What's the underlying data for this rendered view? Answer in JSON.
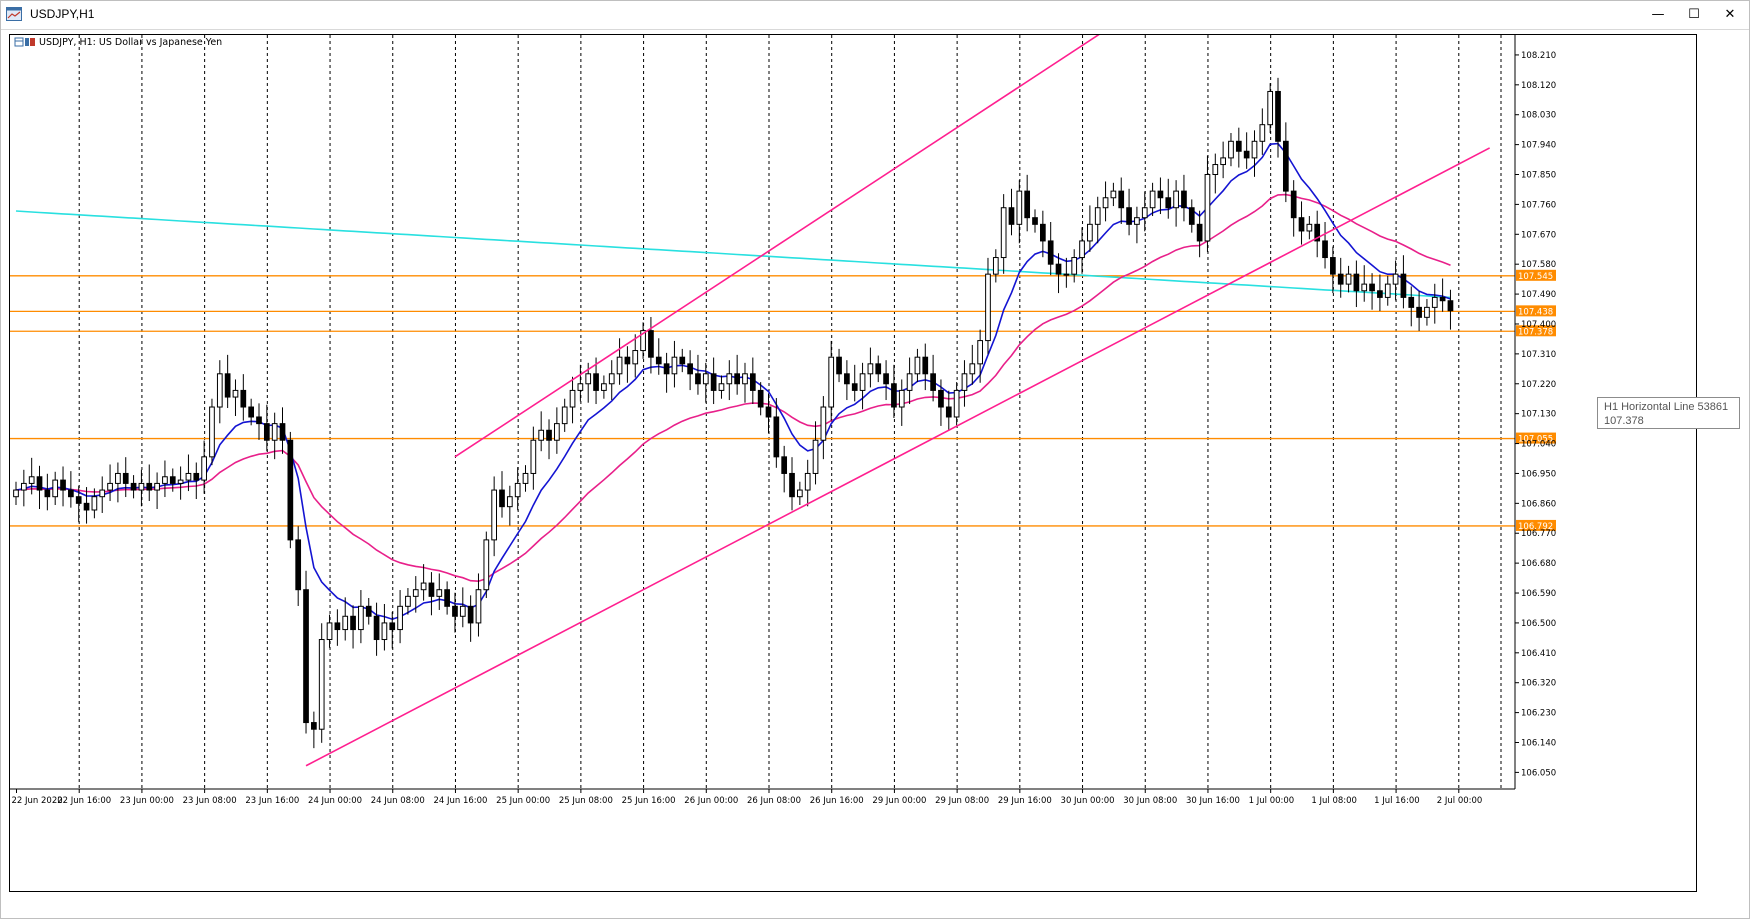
{
  "window": {
    "title": "USDJPY,H1"
  },
  "chart_header": "USDJPY, H1:  US Dollar vs Japanese Yen",
  "tooltip": {
    "line1": "H1 Horizontal Line 53861",
    "line2": "107.378"
  },
  "colors": {
    "ema_fast": "#1414d2",
    "ema_slow": "#e8208a",
    "sma_long": "#29e0e0",
    "channel": "#ff1f8f",
    "hline": "#ff8c00",
    "candle_up": "#ffffff",
    "candle_down": "#000000"
  },
  "chart_data": {
    "type": "candlestick",
    "symbol": "USDJPY",
    "timeframe": "H1",
    "ylim": [
      106.0,
      108.27
    ],
    "y_ticks": [
      "108.210",
      "108.120",
      "108.030",
      "107.940",
      "107.850",
      "107.760",
      "107.670",
      "107.580",
      "107.490",
      "107.400",
      "107.310",
      "107.220",
      "107.130",
      "107.040",
      "106.950",
      "106.860",
      "106.770",
      "106.680",
      "106.590",
      "106.500",
      "106.410",
      "106.320",
      "106.230",
      "106.140",
      "106.050"
    ],
    "x_labels": [
      "22 Jun 2020",
      "22 Jun 16:00",
      "23 Jun 00:00",
      "23 Jun 08:00",
      "23 Jun 16:00",
      "24 Jun 00:00",
      "24 Jun 08:00",
      "24 Jun 16:00",
      "25 Jun 00:00",
      "25 Jun 08:00",
      "25 Jun 16:00",
      "26 Jun 00:00",
      "26 Jun 08:00",
      "26 Jun 16:00",
      "29 Jun 00:00",
      "29 Jun 08:00",
      "29 Jun 16:00",
      "30 Jun 00:00",
      "30 Jun 08:00",
      "30 Jun 16:00",
      "1 Jul 00:00",
      "1 Jul 08:00",
      "1 Jul 16:00",
      "2 Jul 00:00"
    ],
    "horizontal_lines": [
      {
        "value": 107.545,
        "label": "107.545"
      },
      {
        "value": 107.438,
        "label": "107.438"
      },
      {
        "value": 107.378,
        "label": "107.378"
      },
      {
        "value": 107.055,
        "label": "107.055"
      },
      {
        "value": 106.792,
        "label": "106.792"
      }
    ],
    "close": [
      106.9,
      106.92,
      106.94,
      106.9,
      106.88,
      106.93,
      106.9,
      106.88,
      106.86,
      106.84,
      106.88,
      106.9,
      106.92,
      106.95,
      106.92,
      106.9,
      106.92,
      106.9,
      106.92,
      106.94,
      106.92,
      106.93,
      106.95,
      106.93,
      107.0,
      107.15,
      107.25,
      107.18,
      107.2,
      107.15,
      107.12,
      107.1,
      107.05,
      107.1,
      107.05,
      106.75,
      106.6,
      106.2,
      106.18,
      106.45,
      106.5,
      106.48,
      106.52,
      106.48,
      106.55,
      106.52,
      106.45,
      106.5,
      106.48,
      106.55,
      106.58,
      106.6,
      106.62,
      106.58,
      106.6,
      106.55,
      106.52,
      106.55,
      106.5,
      106.6,
      106.75,
      106.9,
      106.85,
      106.88,
      106.92,
      106.95,
      107.05,
      107.08,
      107.05,
      107.1,
      107.15,
      107.2,
      107.22,
      107.25,
      107.2,
      107.22,
      107.25,
      107.3,
      107.28,
      107.32,
      107.38,
      107.3,
      107.28,
      107.25,
      107.3,
      107.28,
      107.25,
      107.22,
      107.25,
      107.2,
      107.22,
      107.25,
      107.22,
      107.25,
      107.2,
      107.15,
      107.12,
      107.0,
      106.95,
      106.88,
      106.9,
      106.95,
      107.05,
      107.15,
      107.3,
      107.25,
      107.22,
      107.2,
      107.25,
      107.28,
      107.25,
      107.22,
      107.15,
      107.2,
      107.25,
      107.3,
      107.25,
      107.2,
      107.15,
      107.12,
      107.2,
      107.25,
      107.28,
      107.35,
      107.55,
      107.6,
      107.75,
      107.7,
      107.8,
      107.72,
      107.7,
      107.65,
      107.58,
      107.55,
      107.55,
      107.6,
      107.65,
      107.7,
      107.75,
      107.78,
      107.8,
      107.75,
      107.7,
      107.72,
      107.75,
      107.8,
      107.78,
      107.75,
      107.8,
      107.75,
      107.7,
      107.65,
      107.85,
      107.88,
      107.9,
      107.95,
      107.92,
      107.9,
      107.95,
      108.0,
      108.1,
      107.95,
      107.8,
      107.72,
      107.68,
      107.7,
      107.65,
      107.6,
      107.55,
      107.52,
      107.55,
      107.5,
      107.52,
      107.5,
      107.48,
      107.52,
      107.55,
      107.48,
      107.45,
      107.42,
      107.45,
      107.48,
      107.47,
      107.44
    ]
  }
}
